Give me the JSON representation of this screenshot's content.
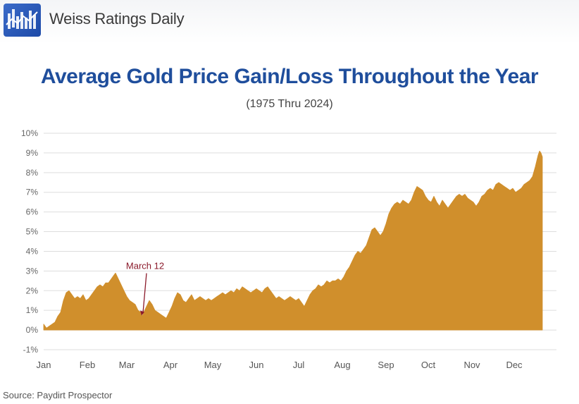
{
  "brand": {
    "name": "Weiss Ratings Daily",
    "logo_icon": "weiss-logo-icon"
  },
  "source_note": "Source: Paydirt Prospector",
  "colors": {
    "area_fill": "#d08f2c",
    "title": "#1f4e9c",
    "annotation": "#8b1a2b",
    "grid": "#dddddd",
    "logo": "#2a5cbf"
  },
  "chart_data": {
    "type": "area",
    "title": "Average Gold Price Gain/Loss Throughout the Year",
    "subtitle": "(1975 Thru 2024)",
    "xlabel": "",
    "ylabel": "",
    "ylim": [
      -1,
      10
    ],
    "yticks": [
      {
        "value": -1,
        "label": "-1%"
      },
      {
        "value": 0,
        "label": "0%"
      },
      {
        "value": 1,
        "label": "1%"
      },
      {
        "value": 2,
        "label": "2%"
      },
      {
        "value": 3,
        "label": "3%"
      },
      {
        "value": 4,
        "label": "4%"
      },
      {
        "value": 5,
        "label": "5%"
      },
      {
        "value": 6,
        "label": "6%"
      },
      {
        "value": 7,
        "label": "7%"
      },
      {
        "value": 8,
        "label": "8%"
      },
      {
        "value": 9,
        "label": "9%"
      },
      {
        "value": 10,
        "label": "10%"
      }
    ],
    "grid": true,
    "xlim": [
      1,
      365
    ],
    "month_ticks": [
      {
        "day": 1,
        "label": "Jan"
      },
      {
        "day": 32,
        "label": "Feb"
      },
      {
        "day": 60,
        "label": "Mar"
      },
      {
        "day": 91,
        "label": "Apr"
      },
      {
        "day": 121,
        "label": "May"
      },
      {
        "day": 152,
        "label": "Jun"
      },
      {
        "day": 182,
        "label": "Jul"
      },
      {
        "day": 213,
        "label": "Aug"
      },
      {
        "day": 244,
        "label": "Sep"
      },
      {
        "day": 274,
        "label": "Oct"
      },
      {
        "day": 305,
        "label": "Nov"
      },
      {
        "day": 335,
        "label": "Dec"
      }
    ],
    "annotation": {
      "text": "March 12",
      "day": 71,
      "value": 0.7
    },
    "series": [
      {
        "values": [
          [
            1,
            0.3
          ],
          [
            3,
            0.1
          ],
          [
            5,
            0.2
          ],
          [
            7,
            0.3
          ],
          [
            9,
            0.4
          ],
          [
            11,
            0.7
          ],
          [
            13,
            0.9
          ],
          [
            15,
            1.5
          ],
          [
            17,
            1.9
          ],
          [
            19,
            2.0
          ],
          [
            21,
            1.8
          ],
          [
            23,
            1.6
          ],
          [
            25,
            1.7
          ],
          [
            27,
            1.6
          ],
          [
            29,
            1.8
          ],
          [
            31,
            1.5
          ],
          [
            33,
            1.6
          ],
          [
            35,
            1.8
          ],
          [
            37,
            2.0
          ],
          [
            39,
            2.2
          ],
          [
            41,
            2.3
          ],
          [
            43,
            2.2
          ],
          [
            45,
            2.4
          ],
          [
            47,
            2.4
          ],
          [
            49,
            2.6
          ],
          [
            51,
            2.8
          ],
          [
            52,
            2.9
          ],
          [
            54,
            2.6
          ],
          [
            56,
            2.3
          ],
          [
            58,
            2.0
          ],
          [
            60,
            1.7
          ],
          [
            62,
            1.5
          ],
          [
            64,
            1.4
          ],
          [
            66,
            1.3
          ],
          [
            68,
            1.0
          ],
          [
            70,
            0.9
          ],
          [
            71,
            0.7
          ],
          [
            72,
            0.9
          ],
          [
            74,
            1.2
          ],
          [
            76,
            1.5
          ],
          [
            78,
            1.3
          ],
          [
            80,
            1.0
          ],
          [
            82,
            0.9
          ],
          [
            84,
            0.8
          ],
          [
            86,
            0.7
          ],
          [
            88,
            0.6
          ],
          [
            90,
            0.9
          ],
          [
            92,
            1.2
          ],
          [
            94,
            1.6
          ],
          [
            96,
            1.9
          ],
          [
            98,
            1.8
          ],
          [
            100,
            1.5
          ],
          [
            102,
            1.4
          ],
          [
            104,
            1.6
          ],
          [
            106,
            1.8
          ],
          [
            108,
            1.5
          ],
          [
            110,
            1.6
          ],
          [
            112,
            1.7
          ],
          [
            114,
            1.6
          ],
          [
            116,
            1.5
          ],
          [
            118,
            1.6
          ],
          [
            120,
            1.5
          ],
          [
            122,
            1.6
          ],
          [
            124,
            1.7
          ],
          [
            126,
            1.8
          ],
          [
            128,
            1.9
          ],
          [
            130,
            1.8
          ],
          [
            132,
            1.9
          ],
          [
            134,
            2.0
          ],
          [
            136,
            1.9
          ],
          [
            138,
            2.1
          ],
          [
            140,
            2.0
          ],
          [
            142,
            2.2
          ],
          [
            144,
            2.1
          ],
          [
            146,
            2.0
          ],
          [
            148,
            1.9
          ],
          [
            150,
            2.0
          ],
          [
            152,
            2.1
          ],
          [
            154,
            2.0
          ],
          [
            156,
            1.9
          ],
          [
            158,
            2.1
          ],
          [
            160,
            2.2
          ],
          [
            162,
            2.0
          ],
          [
            164,
            1.8
          ],
          [
            166,
            1.6
          ],
          [
            168,
            1.7
          ],
          [
            170,
            1.6
          ],
          [
            172,
            1.5
          ],
          [
            174,
            1.6
          ],
          [
            176,
            1.7
          ],
          [
            178,
            1.6
          ],
          [
            180,
            1.5
          ],
          [
            182,
            1.6
          ],
          [
            184,
            1.4
          ],
          [
            186,
            1.2
          ],
          [
            188,
            1.5
          ],
          [
            190,
            1.8
          ],
          [
            192,
            2.0
          ],
          [
            194,
            2.1
          ],
          [
            196,
            2.3
          ],
          [
            198,
            2.2
          ],
          [
            200,
            2.3
          ],
          [
            202,
            2.5
          ],
          [
            204,
            2.4
          ],
          [
            206,
            2.5
          ],
          [
            208,
            2.5
          ],
          [
            210,
            2.6
          ],
          [
            212,
            2.5
          ],
          [
            214,
            2.7
          ],
          [
            216,
            3.0
          ],
          [
            218,
            3.2
          ],
          [
            220,
            3.5
          ],
          [
            222,
            3.8
          ],
          [
            224,
            4.0
          ],
          [
            226,
            3.9
          ],
          [
            228,
            4.1
          ],
          [
            230,
            4.3
          ],
          [
            232,
            4.7
          ],
          [
            234,
            5.1
          ],
          [
            236,
            5.2
          ],
          [
            238,
            5.0
          ],
          [
            240,
            4.8
          ],
          [
            242,
            5.0
          ],
          [
            244,
            5.4
          ],
          [
            246,
            5.9
          ],
          [
            248,
            6.2
          ],
          [
            250,
            6.4
          ],
          [
            252,
            6.5
          ],
          [
            254,
            6.4
          ],
          [
            256,
            6.6
          ],
          [
            258,
            6.5
          ],
          [
            260,
            6.4
          ],
          [
            262,
            6.6
          ],
          [
            264,
            7.0
          ],
          [
            266,
            7.3
          ],
          [
            268,
            7.2
          ],
          [
            270,
            7.1
          ],
          [
            272,
            6.8
          ],
          [
            274,
            6.6
          ],
          [
            276,
            6.5
          ],
          [
            278,
            6.8
          ],
          [
            280,
            6.5
          ],
          [
            282,
            6.3
          ],
          [
            284,
            6.6
          ],
          [
            286,
            6.4
          ],
          [
            288,
            6.2
          ],
          [
            290,
            6.4
          ],
          [
            292,
            6.6
          ],
          [
            294,
            6.8
          ],
          [
            296,
            6.9
          ],
          [
            298,
            6.8
          ],
          [
            300,
            6.9
          ],
          [
            302,
            6.7
          ],
          [
            304,
            6.6
          ],
          [
            306,
            6.5
          ],
          [
            308,
            6.3
          ],
          [
            310,
            6.5
          ],
          [
            312,
            6.8
          ],
          [
            314,
            6.9
          ],
          [
            316,
            7.1
          ],
          [
            318,
            7.2
          ],
          [
            320,
            7.1
          ],
          [
            322,
            7.4
          ],
          [
            324,
            7.5
          ],
          [
            326,
            7.4
          ],
          [
            328,
            7.3
          ],
          [
            330,
            7.2
          ],
          [
            332,
            7.1
          ],
          [
            334,
            7.2
          ],
          [
            336,
            7.0
          ],
          [
            338,
            7.1
          ],
          [
            340,
            7.2
          ],
          [
            342,
            7.4
          ],
          [
            344,
            7.5
          ],
          [
            346,
            7.6
          ],
          [
            348,
            7.8
          ],
          [
            350,
            8.3
          ],
          [
            352,
            8.9
          ],
          [
            353,
            9.1
          ],
          [
            354,
            9.0
          ],
          [
            355,
            8.8
          ]
        ]
      }
    ]
  }
}
